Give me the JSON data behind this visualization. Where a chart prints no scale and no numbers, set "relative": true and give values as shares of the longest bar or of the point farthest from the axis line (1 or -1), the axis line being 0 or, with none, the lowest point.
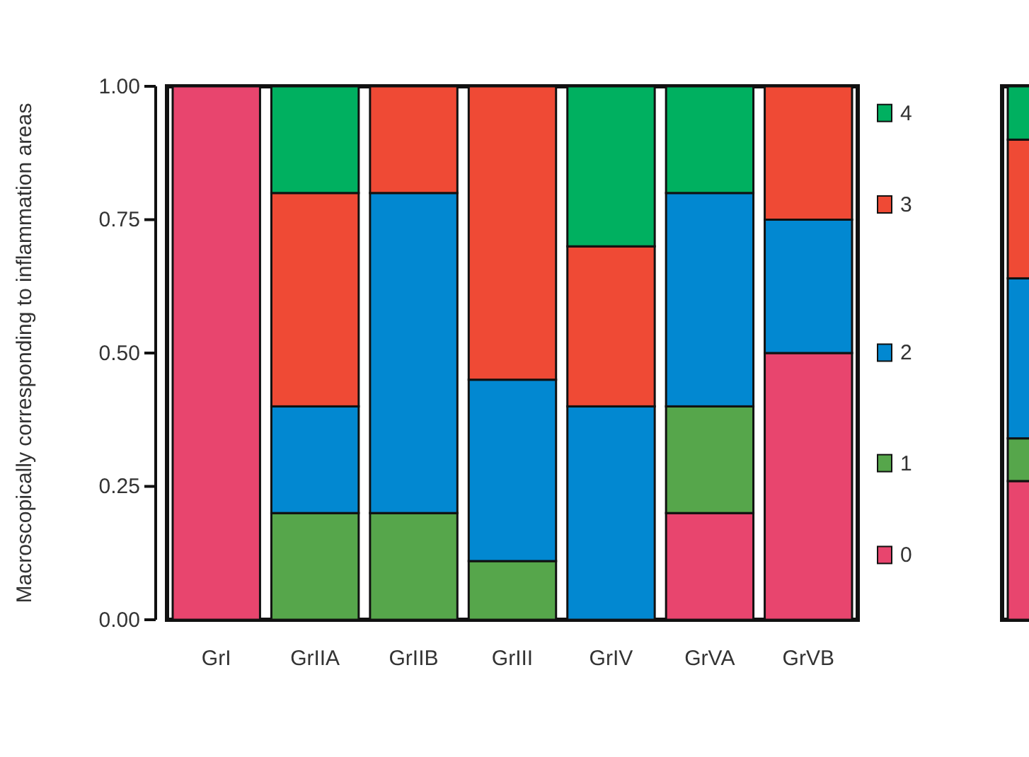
{
  "chart_data": [
    {
      "type": "bar",
      "stacked": true,
      "ylabel": "Macroscopically corresponding to inflammation areas",
      "categories": [
        "GrI",
        "GrIIA",
        "GrIIB",
        "GrIII",
        "GrIV",
        "GrVA",
        "GrVB"
      ],
      "ylim": [
        0,
        1
      ],
      "yticks": [
        {
          "value": 0,
          "label": "0.00"
        },
        {
          "value": 0.25,
          "label": "0.25"
        },
        {
          "value": 0.5,
          "label": "0.50"
        },
        {
          "value": 0.75,
          "label": "0.75"
        },
        {
          "value": 1,
          "label": "1.00"
        }
      ],
      "legend": "right",
      "series": [
        {
          "name": "0",
          "color": "#e8456e",
          "values": [
            1,
            0,
            0,
            0,
            0,
            0.2,
            0.5
          ]
        },
        {
          "name": "1",
          "color": "#56a64b",
          "values": [
            0,
            0.2,
            0.2,
            0.11,
            0,
            0.2,
            0
          ]
        },
        {
          "name": "2",
          "color": "#0288d1",
          "values": [
            0,
            0.2,
            0.6,
            0.34,
            0.4,
            0.4,
            0.25
          ]
        },
        {
          "name": "3",
          "color": "#ef4a35",
          "values": [
            0,
            0.4,
            0.2,
            0.55,
            0.3,
            0,
            0.25
          ]
        },
        {
          "name": "4",
          "color": "#00b060",
          "values": [
            0,
            0.2,
            0,
            0,
            0.3,
            0.2,
            0
          ]
        }
      ]
    },
    {
      "type": "bar",
      "stacked": true,
      "categories": [
        null
      ],
      "relative": true,
      "series": [
        {
          "color": "#e8456e",
          "values": [
            0.26
          ]
        },
        {
          "color": "#56a64b",
          "values": [
            0.08
          ]
        },
        {
          "color": "#0288d1",
          "values": [
            0.3
          ]
        },
        {
          "color": "#ef4a35",
          "values": [
            0.26
          ]
        },
        {
          "color": "#00b060",
          "values": [
            0.1
          ]
        }
      ]
    }
  ]
}
